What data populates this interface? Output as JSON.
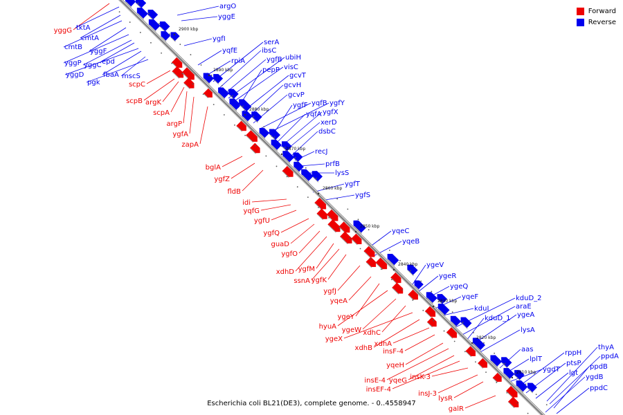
{
  "legend": {
    "items": [
      {
        "label": "Forward",
        "color": "#ee0000"
      },
      {
        "label": "Reverse",
        "color": "#0000ee"
      }
    ]
  },
  "caption": "Escherichia coli BL21(DE3), complete genome. - 0..4558947",
  "colors": {
    "forward": "#ee0000",
    "reverse": "#0000ee",
    "axis": "#7f7f7f"
  },
  "ticks": [
    {
      "label": "2900 kbp"
    },
    {
      "label": "2890 kbp"
    },
    {
      "label": "2880 kbp"
    },
    {
      "label": "2870 kbp"
    },
    {
      "label": "2860 kbp"
    },
    {
      "label": "2850 kbp"
    },
    {
      "label": "2840 kbp"
    },
    {
      "label": "2830 kbp"
    },
    {
      "label": "2820 kbp"
    },
    {
      "label": "2810 kbp"
    }
  ],
  "genes_forward": [
    {
      "label": "yggG"
    },
    {
      "label": "scpC"
    },
    {
      "label": "scpB"
    },
    {
      "label": "argK"
    },
    {
      "label": "scpA"
    },
    {
      "label": "argP"
    },
    {
      "label": "ygfA"
    },
    {
      "label": "zapA"
    },
    {
      "label": "bglA"
    },
    {
      "label": "ygfZ"
    },
    {
      "label": "fldB"
    },
    {
      "label": "idi"
    },
    {
      "label": "yqfG"
    },
    {
      "label": "ygfU"
    },
    {
      "label": "ygfQ"
    },
    {
      "label": "guaD"
    },
    {
      "label": "ygfO"
    },
    {
      "label": "xdhD"
    },
    {
      "label": "ygfM"
    },
    {
      "label": "ssnA"
    },
    {
      "label": "ygfK"
    },
    {
      "label": "ygfJ"
    },
    {
      "label": "yqeA"
    },
    {
      "label": "ygeY"
    },
    {
      "label": "hyuA"
    },
    {
      "label": "ygeW"
    },
    {
      "label": "xdhC"
    },
    {
      "label": "ygeX"
    },
    {
      "label": "xdhB"
    },
    {
      "label": "xdhA"
    },
    {
      "label": "insF-4"
    },
    {
      "label": "yqeH"
    },
    {
      "label": "insE-4"
    },
    {
      "label": "yqeG"
    },
    {
      "label": "insEF-4"
    },
    {
      "label": "insK-3"
    },
    {
      "label": "insJ-3"
    },
    {
      "label": "lysR"
    },
    {
      "label": "galR"
    }
  ],
  "genes_reverse": [
    {
      "label": "tktA"
    },
    {
      "label": "cmtA"
    },
    {
      "label": "cmtB"
    },
    {
      "label": "yggF"
    },
    {
      "label": "yggP"
    },
    {
      "label": "yggC"
    },
    {
      "label": "epd"
    },
    {
      "label": "yggD"
    },
    {
      "label": "fbaA"
    },
    {
      "label": "mscS"
    },
    {
      "label": "pgk"
    },
    {
      "label": "argO"
    },
    {
      "label": "yggE"
    },
    {
      "label": "ygfI"
    },
    {
      "label": "yqfE"
    },
    {
      "label": "rpiA"
    },
    {
      "label": "serA"
    },
    {
      "label": "ibsC"
    },
    {
      "label": "ygfB"
    },
    {
      "label": "ubiH"
    },
    {
      "label": "visC"
    },
    {
      "label": "pepP"
    },
    {
      "label": "gcvT"
    },
    {
      "label": "gcvH"
    },
    {
      "label": "gcvP"
    },
    {
      "label": "yqfB"
    },
    {
      "label": "ygfY"
    },
    {
      "label": "ygfF"
    },
    {
      "label": "yqfA"
    },
    {
      "label": "ygfX"
    },
    {
      "label": "xerD"
    },
    {
      "label": "dsbC"
    },
    {
      "label": "recJ"
    },
    {
      "label": "prfB"
    },
    {
      "label": "lysS"
    },
    {
      "label": "ygfT"
    },
    {
      "label": "ygfS"
    },
    {
      "label": "yqeC"
    },
    {
      "label": "yqeB"
    },
    {
      "label": "ygeV"
    },
    {
      "label": "ygeR"
    },
    {
      "label": "ygeQ"
    },
    {
      "label": "yqeF"
    },
    {
      "label": "kduD_2"
    },
    {
      "label": "kduI"
    },
    {
      "label": "araE"
    },
    {
      "label": "kduD_1"
    },
    {
      "label": "ygeA"
    },
    {
      "label": "lysA"
    },
    {
      "label": "aas"
    },
    {
      "label": "lplT"
    },
    {
      "label": "rppH"
    },
    {
      "label": "thyA"
    },
    {
      "label": "ygdT"
    },
    {
      "label": "ptsP"
    },
    {
      "label": "ppdA"
    },
    {
      "label": "lgt"
    },
    {
      "label": "ppdB"
    },
    {
      "label": "ygdB"
    },
    {
      "label": "ppdC"
    }
  ]
}
